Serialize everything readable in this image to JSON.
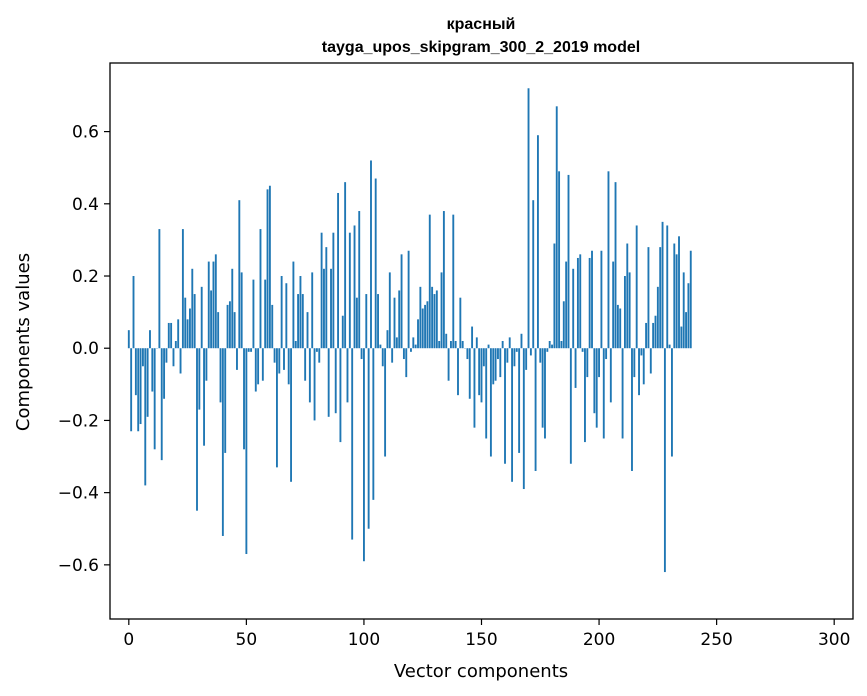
{
  "chart_data": {
    "type": "bar",
    "title": "красный",
    "subtitle": "tayga_upos_skipgram_300_2_2019 model",
    "xlabel": "Vector components",
    "ylabel": "Components values",
    "xlim": [
      -8,
      308
    ],
    "ylim": [
      -0.75,
      0.79
    ],
    "xticks": [
      0,
      50,
      100,
      150,
      200,
      250,
      300
    ],
    "xtick_labels": [
      "0",
      "50",
      "100",
      "150",
      "200",
      "250",
      "300"
    ],
    "yticks": [
      -0.6,
      -0.4,
      -0.2,
      0.0,
      0.2,
      0.4,
      0.6
    ],
    "ytick_labels": [
      "−0.6",
      "−0.4",
      "−0.2",
      "0.0",
      "0.2",
      "0.4",
      "0.6"
    ],
    "bar_color": "#1f77b4",
    "values": [
      0.05,
      -0.23,
      0.2,
      -0.13,
      -0.23,
      -0.21,
      -0.05,
      -0.38,
      -0.19,
      0.05,
      -0.12,
      -0.28,
      0.0,
      0.33,
      -0.31,
      -0.14,
      -0.04,
      0.07,
      0.07,
      -0.05,
      0.02,
      0.08,
      -0.07,
      0.33,
      0.14,
      0.08,
      0.11,
      0.22,
      0.15,
      -0.45,
      -0.17,
      0.17,
      -0.27,
      -0.09,
      0.24,
      0.16,
      0.24,
      0.26,
      0.1,
      -0.15,
      -0.52,
      -0.29,
      0.12,
      0.13,
      0.22,
      0.1,
      -0.06,
      0.41,
      0.21,
      -0.28,
      -0.57,
      -0.01,
      -0.01,
      0.19,
      -0.12,
      -0.1,
      0.33,
      -0.09,
      0.19,
      0.44,
      0.45,
      0.12,
      -0.04,
      -0.33,
      -0.07,
      0.2,
      -0.06,
      0.18,
      -0.1,
      -0.37,
      0.24,
      0.02,
      0.15,
      0.2,
      0.15,
      -0.09,
      0.1,
      -0.15,
      0.21,
      -0.2,
      -0.01,
      -0.04,
      0.32,
      0.22,
      0.28,
      -0.19,
      0.22,
      0.32,
      -0.18,
      0.43,
      -0.26,
      0.09,
      0.46,
      -0.15,
      0.32,
      -0.53,
      0.34,
      0.14,
      0.38,
      -0.03,
      -0.59,
      0.15,
      -0.5,
      0.52,
      -0.42,
      0.47,
      0.15,
      0.01,
      -0.05,
      -0.3,
      0.05,
      0.21,
      -0.04,
      0.14,
      0.03,
      0.16,
      0.26,
      -0.03,
      -0.08,
      0.27,
      -0.01,
      0.03,
      0.01,
      0.08,
      0.17,
      0.11,
      0.12,
      0.13,
      0.37,
      0.17,
      0.15,
      0.16,
      0.02,
      0.21,
      0.38,
      0.04,
      -0.09,
      0.02,
      0.37,
      0.02,
      -0.13,
      0.14,
      0.02,
      0.0,
      -0.03,
      -0.14,
      0.06,
      -0.22,
      0.03,
      -0.13,
      -0.15,
      -0.05,
      -0.25,
      0.01,
      -0.3,
      -0.1,
      -0.09,
      -0.03,
      -0.08,
      0.02,
      -0.32,
      -0.04,
      0.03,
      -0.37,
      -0.05,
      -0.01,
      -0.29,
      0.04,
      -0.39,
      -0.06,
      0.72,
      -0.02,
      0.41,
      -0.34,
      0.59,
      -0.04,
      -0.22,
      -0.25,
      -0.01,
      0.02,
      0.01,
      0.29,
      0.67,
      0.49,
      0.02,
      0.13,
      0.24,
      0.48,
      -0.32,
      0.22,
      -0.11,
      0.25,
      0.26,
      -0.01,
      -0.26,
      -0.08,
      0.25,
      0.27,
      -0.18,
      -0.22,
      -0.08,
      0.27,
      -0.25,
      -0.03,
      0.49,
      -0.15,
      0.24,
      0.46,
      0.12,
      0.11,
      -0.25,
      0.2,
      0.29,
      0.21,
      -0.34,
      -0.08,
      0.34,
      -0.13,
      -0.02,
      -0.1,
      0.07,
      0.28,
      -0.07,
      0.07,
      0.09,
      0.17,
      0.28,
      0.35,
      -0.62,
      0.34,
      0.01,
      -0.3,
      0.29,
      0.26,
      0.31,
      0.06,
      0.21,
      0.1,
      0.18,
      0.27
    ]
  }
}
